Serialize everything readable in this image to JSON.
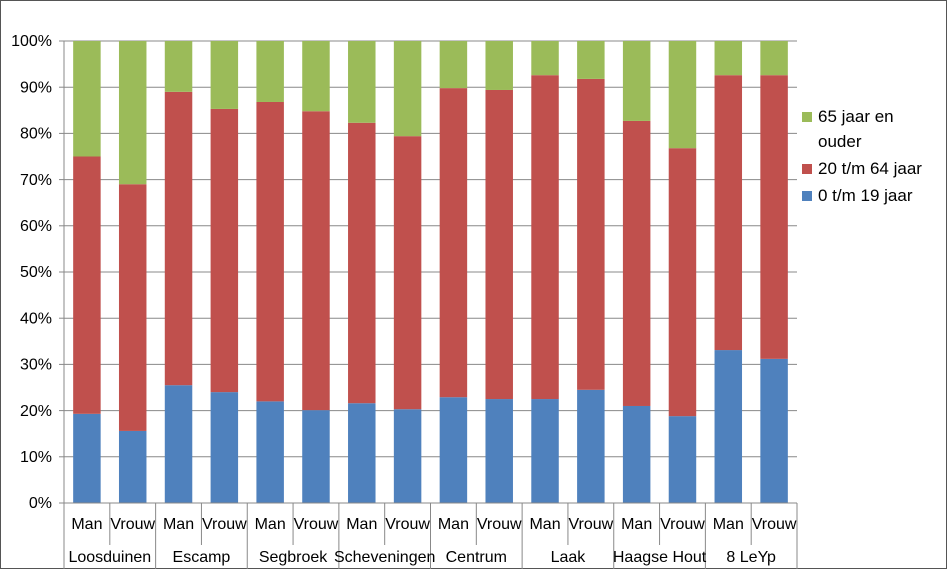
{
  "chart_data": {
    "type": "stacked_bar_100",
    "categories": [
      "Man",
      "Vrouw",
      "Man",
      "Vrouw",
      "Man",
      "Vrouw",
      "Man",
      "Vrouw",
      "Man",
      "Vrouw",
      "Man",
      "Vrouw",
      "Man",
      "Vrouw",
      "Man",
      "Vrouw"
    ],
    "groups": [
      "Loosduinen",
      "Escamp",
      "Segbroek",
      "Scheveningen",
      "Centrum",
      "Laak",
      "Haagse Hout",
      "8 LeYp"
    ],
    "series": [
      {
        "name": "0 t/m 19 jaar",
        "color": "#4f81bd",
        "values": [
          19.3,
          15.6,
          25.5,
          24,
          22,
          20.1,
          21.6,
          20.3,
          22.9,
          22.5,
          22.5,
          24.5,
          21,
          18.8,
          33.1,
          31.2
        ]
      },
      {
        "name": "20 t/m 64 jaar",
        "color": "#c0504d",
        "values": [
          55.7,
          53.4,
          63.5,
          61.3,
          64.8,
          64.7,
          60.7,
          59.1,
          66.9,
          66.9,
          70.1,
          67.3,
          61.7,
          58,
          59.5,
          61.4
        ]
      },
      {
        "name": "65 jaar en ouder",
        "color": "#9bbb59",
        "values": [
          25,
          31,
          11,
          14.7,
          13.2,
          15.2,
          17.7,
          20.6,
          10.2,
          10.6,
          7.4,
          8.2,
          17.3,
          23.2,
          7.4,
          7.4
        ]
      }
    ],
    "ylim": [
      0,
      100
    ],
    "yticks": [
      {
        "value": 0,
        "label": "0%"
      },
      {
        "value": 10,
        "label": "10%"
      },
      {
        "value": 20,
        "label": "20%"
      },
      {
        "value": 30,
        "label": "30%"
      },
      {
        "value": 40,
        "label": "40%"
      },
      {
        "value": 50,
        "label": "50%"
      },
      {
        "value": 60,
        "label": "60%"
      },
      {
        "value": 70,
        "label": "70%"
      },
      {
        "value": 80,
        "label": "80%"
      },
      {
        "value": 90,
        "label": "90%"
      },
      {
        "value": 100,
        "label": "100%"
      }
    ],
    "grid": true,
    "legend": "right"
  }
}
